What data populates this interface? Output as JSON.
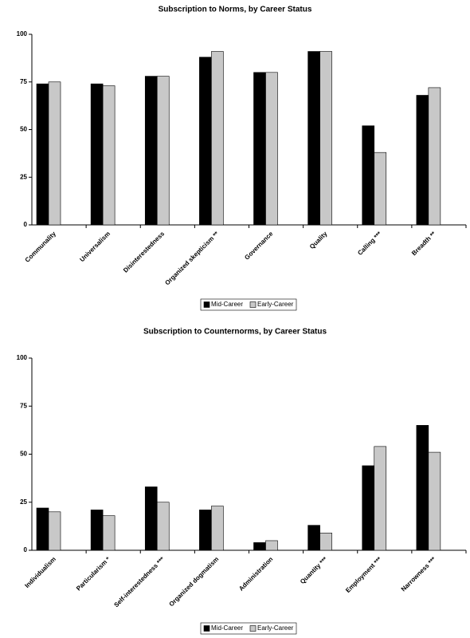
{
  "chart_data": [
    {
      "type": "bar",
      "title": "Subscription to Norms, by Career Status",
      "categories": [
        "Communality",
        "Universalism",
        "Disinterestedness",
        "Organized skepticism **",
        "Governance",
        "Quality",
        "Calling ***",
        "Breadth **"
      ],
      "series": [
        {
          "name": "Mid-Career",
          "color": "#000000",
          "values": [
            74,
            74,
            78,
            88,
            80,
            91,
            52,
            68
          ]
        },
        {
          "name": "Early-Career",
          "color": "#c8c8c8",
          "values": [
            75,
            73,
            78,
            91,
            80,
            91,
            38,
            72
          ]
        }
      ],
      "ylim": [
        0,
        100
      ],
      "yticks": [
        0,
        25,
        50,
        75,
        100
      ],
      "legend": "bottom"
    },
    {
      "type": "bar",
      "title": "Subscription to Counternorms, by Career Status",
      "categories": [
        "Individualism",
        "Particularism *",
        "Self-interestedness ***",
        "Organized dogmatism",
        "Administration",
        "Quantity ***",
        "Employment ***",
        "Narrowness ***"
      ],
      "series": [
        {
          "name": "Mid-Career",
          "color": "#000000",
          "values": [
            22,
            21,
            33,
            21,
            4,
            13,
            44,
            65
          ]
        },
        {
          "name": "Early-Career",
          "color": "#c8c8c8",
          "values": [
            20,
            18,
            25,
            23,
            5,
            9,
            54,
            51
          ]
        }
      ],
      "ylim": [
        0,
        100
      ],
      "yticks": [
        0,
        25,
        50,
        75,
        100
      ],
      "legend": "bottom"
    }
  ]
}
